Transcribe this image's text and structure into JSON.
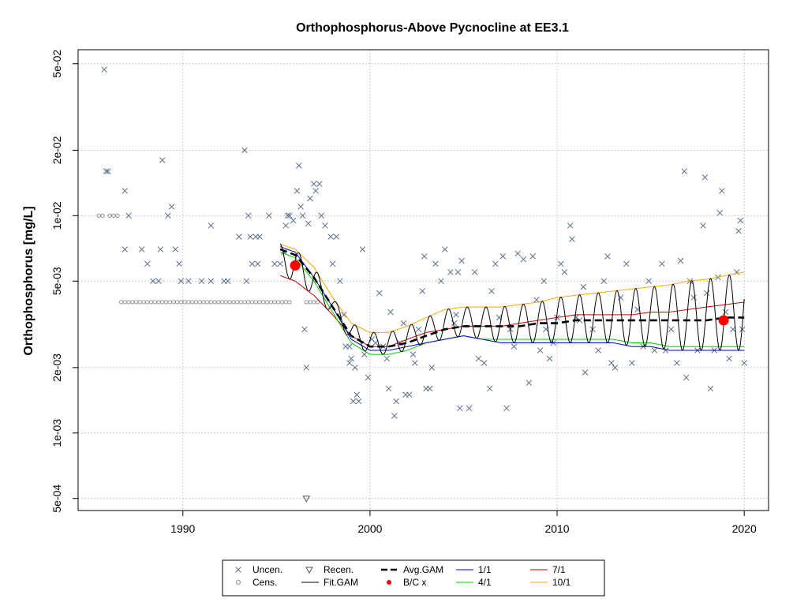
{
  "chart_data": {
    "type": "scatter",
    "title": "Orthophosphorus-Above Pycnocline at EE3.1",
    "xlabel": "",
    "ylabel": "Orthophosphorus [mg/L]",
    "y_scale": "log",
    "xlim": [
      1984.4,
      2021.3
    ],
    "ylim": [
      0.00044,
      0.058
    ],
    "x_ticks": [
      1990,
      2000,
      2010,
      2020
    ],
    "x_tick_labels": [
      "1990",
      "2000",
      "2010",
      "2020"
    ],
    "y_ticks": [
      0.0005,
      0.001,
      0.002,
      0.005,
      0.01,
      0.02,
      0.05
    ],
    "y_tick_labels": [
      "5e-04",
      "1e-03",
      "2e-03",
      "5e-03",
      "1e-02",
      "2e-02",
      "5e-02"
    ],
    "grid": true,
    "legend_position": "bottom",
    "colors": {
      "uncen": "#5a6e8c",
      "cens": "#8c8c8c",
      "fit_gam": "#000000",
      "avg_gam": "#000000",
      "bc": "#ff0000",
      "s1_1": "#0000cc",
      "s4_1": "#00cc00",
      "s7_1": "#cc0000",
      "s10_1": "#ffa500"
    },
    "legend": [
      {
        "label": "Uncen.",
        "symbol": "x",
        "color": "#5a6e8c"
      },
      {
        "label": "Cens.",
        "symbol": "circle",
        "color": "#8c8c8c"
      },
      {
        "label": "Recen.",
        "symbol": "triangle",
        "color": "#555555"
      },
      {
        "label": "Fit.GAM",
        "symbol": "line",
        "color": "#000000"
      },
      {
        "label": "Avg.GAM",
        "symbol": "dashed",
        "color": "#000000"
      },
      {
        "label": "B/C x",
        "symbol": "dot",
        "color": "#ff0000"
      },
      {
        "label": "1/1",
        "symbol": "line",
        "color": "#0000cc"
      },
      {
        "label": "4/1",
        "symbol": "line",
        "color": "#00cc00"
      },
      {
        "label": "7/1",
        "symbol": "line",
        "color": "#cc0000"
      },
      {
        "label": "10/1",
        "symbol": "line",
        "color": "#ffa500"
      }
    ],
    "uncensored": [
      [
        1985.8,
        0.047
      ],
      [
        1985.9,
        0.016
      ],
      [
        1986.0,
        0.016
      ],
      [
        1986.9,
        0.013
      ],
      [
        1987.1,
        0.01
      ],
      [
        1986.9,
        0.007
      ],
      [
        1987.8,
        0.007
      ],
      [
        1988.1,
        0.006
      ],
      [
        1988.4,
        0.005
      ],
      [
        1988.7,
        0.005
      ],
      [
        1988.8,
        0.007
      ],
      [
        1988.9,
        0.018
      ],
      [
        1989.2,
        0.01
      ],
      [
        1989.4,
        0.011
      ],
      [
        1989.6,
        0.007
      ],
      [
        1989.8,
        0.006
      ],
      [
        1989.9,
        0.005
      ],
      [
        1990.3,
        0.005
      ],
      [
        1991.0,
        0.005
      ],
      [
        1991.5,
        0.005
      ],
      [
        1991.5,
        0.009
      ],
      [
        1992.2,
        0.005
      ],
      [
        1992.4,
        0.005
      ],
      [
        1993.0,
        0.008
      ],
      [
        1993.3,
        0.02
      ],
      [
        1993.4,
        0.005
      ],
      [
        1993.5,
        0.01
      ],
      [
        1993.6,
        0.008
      ],
      [
        1993.7,
        0.006
      ],
      [
        1993.9,
        0.008
      ],
      [
        1994.0,
        0.006
      ],
      [
        1994.1,
        0.008
      ],
      [
        1994.6,
        0.01
      ],
      [
        1994.9,
        0.006
      ],
      [
        1995.2,
        0.006
      ],
      [
        1995.4,
        0.0068
      ],
      [
        1995.5,
        0.009
      ],
      [
        1995.6,
        0.01
      ],
      [
        1995.7,
        0.01
      ],
      [
        1995.9,
        0.0095
      ],
      [
        1996.1,
        0.013
      ],
      [
        1996.2,
        0.017
      ],
      [
        1996.3,
        0.011
      ],
      [
        1996.4,
        0.01
      ],
      [
        1996.5,
        0.003
      ],
      [
        1996.6,
        0.002
      ],
      [
        1996.7,
        0.0092
      ],
      [
        1996.8,
        0.012
      ],
      [
        1997.0,
        0.014
      ],
      [
        1997.1,
        0.013
      ],
      [
        1997.3,
        0.014
      ],
      [
        1997.4,
        0.01
      ],
      [
        1997.6,
        0.009
      ],
      [
        1997.9,
        0.008
      ],
      [
        1998.0,
        0.006
      ],
      [
        1998.2,
        0.008
      ],
      [
        1998.4,
        0.005
      ],
      [
        1998.6,
        0.0035
      ],
      [
        1998.7,
        0.0025
      ],
      [
        1998.9,
        0.0025
      ],
      [
        1998.9,
        0.0021
      ],
      [
        1999.0,
        0.0022
      ],
      [
        1999.1,
        0.0014
      ],
      [
        1999.2,
        0.002
      ],
      [
        1999.3,
        0.0015
      ],
      [
        1999.4,
        0.0014
      ],
      [
        1999.6,
        0.007
      ],
      [
        1999.7,
        0.0023
      ],
      [
        1999.9,
        0.0018
      ],
      [
        2000.1,
        0.0027
      ],
      [
        2000.3,
        0.0026
      ],
      [
        2000.5,
        0.0044
      ],
      [
        2000.7,
        0.0025
      ],
      [
        2000.9,
        0.0022
      ],
      [
        2001.0,
        0.0016
      ],
      [
        2001.1,
        0.0036
      ],
      [
        2001.3,
        0.0012
      ],
      [
        2001.4,
        0.0014
      ],
      [
        2001.6,
        0.0026
      ],
      [
        2001.8,
        0.0032
      ],
      [
        2001.9,
        0.0015
      ],
      [
        2002.1,
        0.0015
      ],
      [
        2002.3,
        0.0023
      ],
      [
        2002.4,
        0.0021
      ],
      [
        2002.6,
        0.003
      ],
      [
        2002.8,
        0.0045
      ],
      [
        2002.9,
        0.0065
      ],
      [
        2003.0,
        0.0016
      ],
      [
        2003.2,
        0.0016
      ],
      [
        2003.3,
        0.002
      ],
      [
        2003.5,
        0.006
      ],
      [
        2003.8,
        0.005
      ],
      [
        2004.0,
        0.007
      ],
      [
        2004.3,
        0.0055
      ],
      [
        2004.5,
        0.0032
      ],
      [
        2004.6,
        0.0035
      ],
      [
        2004.7,
        0.0055
      ],
      [
        2004.8,
        0.0013
      ],
      [
        2004.9,
        0.0062
      ],
      [
        2005.3,
        0.0013
      ],
      [
        2005.6,
        0.0055
      ],
      [
        2005.8,
        0.0022
      ],
      [
        2006.1,
        0.0021
      ],
      [
        2006.4,
        0.0016
      ],
      [
        2006.5,
        0.0045
      ],
      [
        2006.7,
        0.006
      ],
      [
        2006.9,
        0.0034
      ],
      [
        2007.1,
        0.0065
      ],
      [
        2007.3,
        0.0013
      ],
      [
        2007.5,
        0.003
      ],
      [
        2007.7,
        0.0025
      ],
      [
        2007.9,
        0.0067
      ],
      [
        2008.2,
        0.0063
      ],
      [
        2008.5,
        0.0017
      ],
      [
        2008.7,
        0.0065
      ],
      [
        2008.9,
        0.0041
      ],
      [
        2009.1,
        0.0024
      ],
      [
        2009.3,
        0.005
      ],
      [
        2009.4,
        0.003
      ],
      [
        2009.6,
        0.0022
      ],
      [
        2009.8,
        0.0026
      ],
      [
        2010.0,
        0.0034
      ],
      [
        2010.2,
        0.006
      ],
      [
        2010.4,
        0.0055
      ],
      [
        2010.7,
        0.009
      ],
      [
        2010.8,
        0.0078
      ],
      [
        2011.0,
        0.0034
      ],
      [
        2011.2,
        0.0033
      ],
      [
        2011.4,
        0.0047
      ],
      [
        2011.5,
        0.0019
      ],
      [
        2011.9,
        0.003
      ],
      [
        2012.2,
        0.0024
      ],
      [
        2012.5,
        0.005
      ],
      [
        2012.7,
        0.0065
      ],
      [
        2012.9,
        0.0021
      ],
      [
        2013.1,
        0.002
      ],
      [
        2013.4,
        0.0042
      ],
      [
        2013.7,
        0.006
      ],
      [
        2014.0,
        0.0021
      ],
      [
        2014.3,
        0.0037
      ],
      [
        2014.6,
        0.0025
      ],
      [
        2014.9,
        0.005
      ],
      [
        2015.2,
        0.0024
      ],
      [
        2015.6,
        0.006
      ],
      [
        2015.8,
        0.0024
      ],
      [
        2016.1,
        0.003
      ],
      [
        2016.4,
        0.0021
      ],
      [
        2016.6,
        0.0062
      ],
      [
        2016.9,
        0.0018
      ],
      [
        2017.1,
        0.005
      ],
      [
        2017.3,
        0.0042
      ],
      [
        2017.5,
        0.0024
      ],
      [
        2017.8,
        0.009
      ],
      [
        2018.0,
        0.0044
      ],
      [
        2018.2,
        0.0016
      ],
      [
        2018.4,
        0.0024
      ],
      [
        2018.6,
        0.0052
      ],
      [
        2018.8,
        0.013
      ],
      [
        2019.0,
        0.0036
      ],
      [
        2019.2,
        0.0022
      ],
      [
        2019.4,
        0.003
      ],
      [
        2019.6,
        0.0055
      ],
      [
        2019.8,
        0.0095
      ],
      [
        2019.9,
        0.003
      ],
      [
        2020.0,
        0.0021
      ],
      [
        2016.8,
        0.016
      ],
      [
        2017.9,
        0.015
      ],
      [
        2018.7,
        0.0103
      ],
      [
        2019.7,
        0.0085
      ]
    ],
    "censored": [
      [
        1985.5,
        0.01
      ],
      [
        1985.7,
        0.01
      ],
      [
        1986.1,
        0.01
      ],
      [
        1986.3,
        0.01
      ],
      [
        1986.5,
        0.01
      ],
      [
        1986.7,
        0.004
      ],
      [
        1986.9,
        0.004
      ],
      [
        1987.1,
        0.004
      ],
      [
        1987.3,
        0.004
      ],
      [
        1987.5,
        0.004
      ],
      [
        1987.7,
        0.004
      ],
      [
        1987.9,
        0.004
      ],
      [
        1988.1,
        0.004
      ],
      [
        1988.3,
        0.004
      ],
      [
        1988.5,
        0.004
      ],
      [
        1988.7,
        0.004
      ],
      [
        1988.9,
        0.004
      ],
      [
        1989.1,
        0.004
      ],
      [
        1989.3,
        0.004
      ],
      [
        1989.5,
        0.004
      ],
      [
        1989.7,
        0.004
      ],
      [
        1989.9,
        0.004
      ],
      [
        1990.1,
        0.004
      ],
      [
        1990.3,
        0.004
      ],
      [
        1990.5,
        0.004
      ],
      [
        1990.7,
        0.004
      ],
      [
        1990.9,
        0.004
      ],
      [
        1991.1,
        0.004
      ],
      [
        1991.3,
        0.004
      ],
      [
        1991.5,
        0.004
      ],
      [
        1991.7,
        0.004
      ],
      [
        1991.9,
        0.004
      ],
      [
        1992.1,
        0.004
      ],
      [
        1992.3,
        0.004
      ],
      [
        1992.5,
        0.004
      ],
      [
        1992.7,
        0.004
      ],
      [
        1992.9,
        0.004
      ],
      [
        1993.1,
        0.004
      ],
      [
        1993.3,
        0.004
      ],
      [
        1993.5,
        0.004
      ],
      [
        1993.7,
        0.004
      ],
      [
        1993.9,
        0.004
      ],
      [
        1994.1,
        0.004
      ],
      [
        1994.3,
        0.004
      ],
      [
        1994.5,
        0.004
      ],
      [
        1994.7,
        0.004
      ],
      [
        1994.9,
        0.004
      ],
      [
        1995.1,
        0.004
      ],
      [
        1995.3,
        0.004
      ],
      [
        1995.5,
        0.004
      ],
      [
        1995.7,
        0.004
      ],
      [
        1996.6,
        0.004
      ],
      [
        1996.8,
        0.004
      ],
      [
        1997.0,
        0.004
      ],
      [
        1997.2,
        0.004
      ]
    ],
    "recensored": [
      [
        1996.6,
        0.0005
      ]
    ],
    "bc_points": [
      [
        1996.0,
        0.0059
      ],
      [
        2018.9,
        0.0033
      ]
    ],
    "seasonal_1_1": [
      [
        1995.2,
        0.0072
      ],
      [
        1996.0,
        0.0068
      ],
      [
        1997.0,
        0.0052
      ],
      [
        1998.0,
        0.0038
      ],
      [
        1999.0,
        0.0027
      ],
      [
        2000.0,
        0.0024
      ],
      [
        2001.0,
        0.0024
      ],
      [
        2002.0,
        0.0025
      ],
      [
        2003.0,
        0.0026
      ],
      [
        2004.0,
        0.0027
      ],
      [
        2005.0,
        0.0028
      ],
      [
        2006.0,
        0.0027
      ],
      [
        2007.0,
        0.0026
      ],
      [
        2008.0,
        0.0026
      ],
      [
        2009.0,
        0.0026
      ],
      [
        2010.0,
        0.0026
      ],
      [
        2011.0,
        0.0026
      ],
      [
        2012.0,
        0.0026
      ],
      [
        2013.0,
        0.0026
      ],
      [
        2014.0,
        0.0025
      ],
      [
        2015.0,
        0.0025
      ],
      [
        2016.0,
        0.0024
      ],
      [
        2017.0,
        0.0024
      ],
      [
        2018.0,
        0.0024
      ],
      [
        2019.0,
        0.0024
      ],
      [
        2020.0,
        0.0024
      ]
    ],
    "seasonal_4_1": [
      [
        1995.2,
        0.0068
      ],
      [
        1996.0,
        0.0064
      ],
      [
        1997.0,
        0.005
      ],
      [
        1998.0,
        0.0036
      ],
      [
        1999.0,
        0.0026
      ],
      [
        2000.0,
        0.0023
      ],
      [
        2001.0,
        0.0023
      ],
      [
        2002.0,
        0.0024
      ],
      [
        2003.0,
        0.0026
      ],
      [
        2004.0,
        0.0027
      ],
      [
        2005.0,
        0.0028
      ],
      [
        2006.0,
        0.0027
      ],
      [
        2007.0,
        0.0027
      ],
      [
        2008.0,
        0.0027
      ],
      [
        2009.0,
        0.0027
      ],
      [
        2010.0,
        0.0027
      ],
      [
        2011.0,
        0.0027
      ],
      [
        2012.0,
        0.0027
      ],
      [
        2013.0,
        0.0027
      ],
      [
        2014.0,
        0.0026
      ],
      [
        2015.0,
        0.0026
      ],
      [
        2016.0,
        0.0025
      ],
      [
        2017.0,
        0.0025
      ],
      [
        2018.0,
        0.0025
      ],
      [
        2019.0,
        0.0025
      ],
      [
        2020.0,
        0.0025
      ]
    ],
    "seasonal_7_1": [
      [
        1995.2,
        0.0053
      ],
      [
        1996.0,
        0.005
      ],
      [
        1997.0,
        0.0043
      ],
      [
        1998.0,
        0.0035
      ],
      [
        1999.0,
        0.0028
      ],
      [
        2000.0,
        0.0025
      ],
      [
        2001.0,
        0.0025
      ],
      [
        2002.0,
        0.0027
      ],
      [
        2003.0,
        0.0029
      ],
      [
        2004.0,
        0.003
      ],
      [
        2005.0,
        0.0031
      ],
      [
        2006.0,
        0.0031
      ],
      [
        2007.0,
        0.0031
      ],
      [
        2008.0,
        0.0032
      ],
      [
        2009.0,
        0.0033
      ],
      [
        2010.0,
        0.0034
      ],
      [
        2011.0,
        0.0035
      ],
      [
        2012.0,
        0.0035
      ],
      [
        2013.0,
        0.0035
      ],
      [
        2014.0,
        0.0035
      ],
      [
        2015.0,
        0.0036
      ],
      [
        2016.0,
        0.0036
      ],
      [
        2017.0,
        0.0037
      ],
      [
        2018.0,
        0.0038
      ],
      [
        2019.0,
        0.0039
      ],
      [
        2020.0,
        0.004
      ]
    ],
    "seasonal_10_1": [
      [
        1995.2,
        0.0074
      ],
      [
        1996.0,
        0.007
      ],
      [
        1997.0,
        0.0058
      ],
      [
        1998.0,
        0.0042
      ],
      [
        1999.0,
        0.0032
      ],
      [
        2000.0,
        0.0029
      ],
      [
        2001.0,
        0.0029
      ],
      [
        2002.0,
        0.0031
      ],
      [
        2003.0,
        0.0034
      ],
      [
        2004.0,
        0.0037
      ],
      [
        2005.0,
        0.0038
      ],
      [
        2006.0,
        0.0038
      ],
      [
        2007.0,
        0.0038
      ],
      [
        2008.0,
        0.0039
      ],
      [
        2009.0,
        0.004
      ],
      [
        2010.0,
        0.0042
      ],
      [
        2011.0,
        0.0043
      ],
      [
        2012.0,
        0.0044
      ],
      [
        2013.0,
        0.0045
      ],
      [
        2014.0,
        0.0046
      ],
      [
        2015.0,
        0.0047
      ],
      [
        2016.0,
        0.0048
      ],
      [
        2017.0,
        0.005
      ],
      [
        2018.0,
        0.0051
      ],
      [
        2019.0,
        0.0053
      ],
      [
        2020.0,
        0.0055
      ]
    ],
    "avg_gam": [
      [
        1995.2,
        0.007
      ],
      [
        1996.0,
        0.0066
      ],
      [
        1997.0,
        0.0052
      ],
      [
        1998.0,
        0.0038
      ],
      [
        1999.0,
        0.0028
      ],
      [
        2000.0,
        0.0025
      ],
      [
        2001.0,
        0.0025
      ],
      [
        2002.0,
        0.0026
      ],
      [
        2003.0,
        0.0028
      ],
      [
        2004.0,
        0.003
      ],
      [
        2005.0,
        0.0031
      ],
      [
        2006.0,
        0.0031
      ],
      [
        2007.0,
        0.0031
      ],
      [
        2008.0,
        0.0031
      ],
      [
        2009.0,
        0.0032
      ],
      [
        2010.0,
        0.0032
      ],
      [
        2011.0,
        0.0033
      ],
      [
        2012.0,
        0.0033
      ],
      [
        2013.0,
        0.0033
      ],
      [
        2014.0,
        0.0033
      ],
      [
        2015.0,
        0.0033
      ],
      [
        2016.0,
        0.0033
      ],
      [
        2017.0,
        0.0033
      ],
      [
        2018.0,
        0.0033
      ],
      [
        2019.0,
        0.0034
      ],
      [
        2020.0,
        0.0034
      ]
    ],
    "fit_gam": {
      "start": 1995.2,
      "end": 2020.0
    }
  }
}
